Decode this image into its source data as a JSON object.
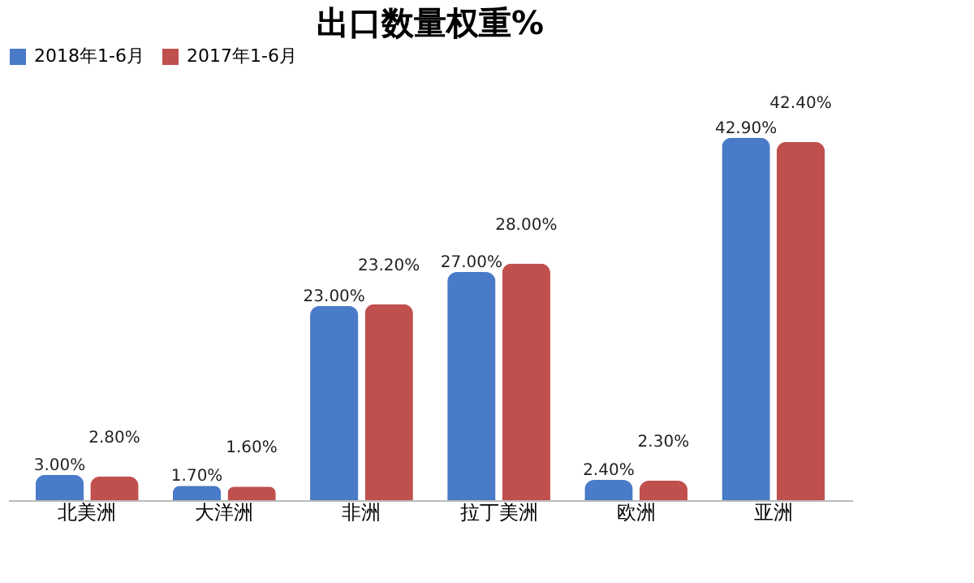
{
  "chart_data": {
    "type": "bar",
    "title": "出口数量权重%",
    "categories": [
      "北美洲",
      "大洋洲",
      "非洲",
      "拉丁美洲",
      "欧洲",
      "亚洲"
    ],
    "series": [
      {
        "name": "2018年1-6月",
        "color": "#4a7bc8",
        "values": [
          3.0,
          1.7,
          23.0,
          27.0,
          2.4,
          42.9
        ],
        "value_labels": [
          "3.00%",
          "1.70%",
          "23.00%",
          "27.00%",
          "2.40%",
          "42.90%"
        ]
      },
      {
        "name": "2017年1-6月",
        "color": "#c0504d",
        "values": [
          2.8,
          1.6,
          23.2,
          28.0,
          2.3,
          42.4
        ],
        "value_labels": [
          "2.80%",
          "1.60%",
          "23.20%",
          "28.00%",
          "2.30%",
          "42.40%"
        ]
      }
    ],
    "legend": "top",
    "grid": false
  }
}
